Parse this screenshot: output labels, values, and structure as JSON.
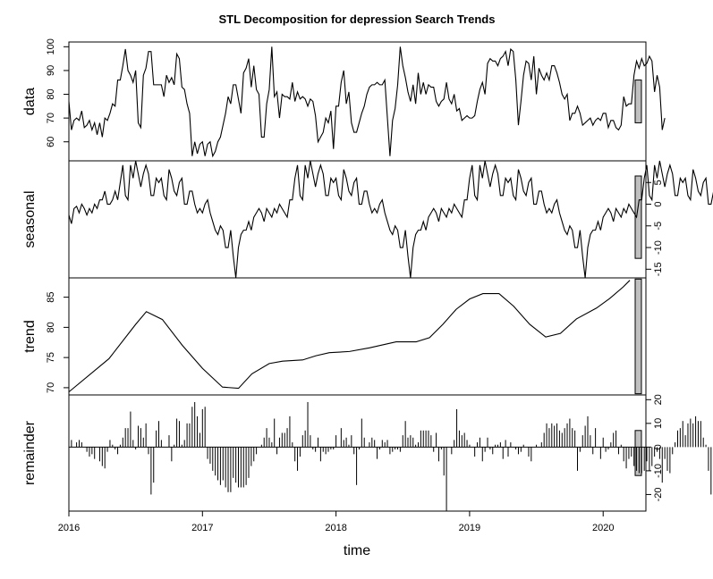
{
  "chart_data": {
    "type": "line",
    "title": "STL Decomposition for depression Search Trends",
    "xlabel": "time",
    "xlim": [
      2016,
      2020.32
    ],
    "x_ticks": [
      "2016",
      "2017",
      "2018",
      "2019",
      "2020"
    ],
    "x_start": 2016,
    "x_step": 0.0192308,
    "panels": [
      {
        "name": "data",
        "type": "line",
        "ylabel": "data",
        "ylim": [
          52,
          102
        ],
        "y_ticks": [
          "60",
          "70",
          "80",
          "90",
          "100"
        ],
        "y_axis_side": "left",
        "range_bar": [
          68,
          86
        ],
        "values": [
          77,
          65,
          69,
          70,
          69,
          73,
          66,
          67,
          69,
          65,
          68,
          63,
          68,
          62,
          70,
          69,
          72,
          76,
          75,
          86,
          86,
          92,
          99,
          90,
          88,
          85,
          90,
          68,
          66,
          88,
          91,
          98,
          98,
          84,
          84,
          84,
          84,
          79,
          88,
          85,
          87,
          84,
          97,
          95,
          83,
          82,
          76,
          72,
          54,
          60,
          55,
          59,
          60,
          54,
          59,
          60,
          54,
          56,
          60,
          62,
          67,
          72,
          79,
          76,
          84,
          84,
          78,
          72,
          89,
          91,
          95,
          83,
          92,
          82,
          80,
          62,
          62,
          76,
          82,
          100,
          79,
          81,
          70,
          80,
          79,
          79,
          78,
          85,
          77,
          81,
          78,
          79,
          78,
          75,
          78,
          77,
          71,
          60,
          62,
          64,
          70,
          68,
          73,
          57,
          75,
          75,
          85,
          90,
          76,
          81,
          68,
          64,
          64,
          68,
          72,
          75,
          80,
          83,
          84,
          84,
          85,
          84,
          84,
          86,
          70,
          54,
          69,
          74,
          84,
          100,
          92,
          87,
          81,
          77,
          84,
          76,
          89,
          80,
          85,
          80,
          84,
          83,
          83,
          77,
          75,
          77,
          78,
          85,
          78,
          76,
          80,
          73,
          74,
          69,
          70,
          71,
          70,
          70,
          71,
          77,
          82,
          85,
          80,
          93,
          95,
          94,
          94,
          92,
          95,
          96,
          98,
          92,
          99,
          98,
          86,
          67,
          77,
          88,
          94,
          93,
          86,
          96,
          80,
          91,
          88,
          86,
          89,
          86,
          92,
          92,
          89,
          85,
          80,
          78,
          80,
          69,
          72,
          72,
          75,
          72,
          67,
          68,
          69,
          70,
          67,
          69,
          70,
          69,
          72,
          72,
          66,
          69,
          69,
          66,
          65,
          67,
          79,
          75,
          76,
          76,
          88,
          94,
          91,
          95,
          92,
          93,
          96,
          94,
          81,
          88,
          83,
          65,
          70
        ]
      },
      {
        "name": "seasonal",
        "type": "line",
        "ylabel": "seasonal",
        "ylim": [
          -17,
          10
        ],
        "y_ticks": [
          "5",
          "0",
          "-5",
          "-10",
          "-15"
        ],
        "y_axis_side": "right",
        "range_bar": [
          -12.5,
          6.5
        ],
        "values": [
          -2.5,
          -4.5,
          -1,
          -0.5,
          -2,
          0,
          -1,
          -2.5,
          -1,
          -2,
          0,
          -1,
          1,
          1,
          3,
          0,
          0,
          1,
          3,
          1,
          5,
          9,
          2,
          1,
          9,
          6,
          10,
          7,
          4,
          7,
          9,
          7,
          2,
          2,
          6,
          5,
          6,
          2,
          1,
          8,
          6,
          3,
          2,
          5,
          6,
          0,
          0,
          3,
          3,
          0,
          -2,
          -1,
          -2,
          0,
          1,
          -2,
          -4,
          -6,
          -7,
          -5,
          -6,
          -10,
          -10,
          -6,
          -12,
          -17,
          -10,
          -7,
          -6,
          -6,
          -4,
          -6,
          -3,
          -2,
          -1,
          -2,
          -4,
          -1,
          -2,
          -3,
          -1,
          -2,
          0,
          -1,
          -2,
          -3,
          1,
          1,
          6,
          9,
          2,
          1,
          9,
          6,
          10,
          7,
          4,
          7,
          9,
          7,
          2,
          2,
          6,
          5,
          6,
          2,
          1,
          8,
          6,
          3,
          2,
          5,
          6,
          0,
          0,
          3,
          3,
          0,
          -2,
          -1,
          -2,
          0,
          1,
          -2,
          -4,
          -6,
          -7,
          -5,
          -6,
          -10,
          -10,
          -6,
          -12,
          -17,
          -10,
          -7,
          -6,
          -6,
          -4,
          -6,
          -3,
          -2,
          -1,
          -2,
          -4,
          -1,
          -2,
          -3,
          -1,
          -2,
          0,
          -1,
          -2,
          -3,
          1,
          1,
          6,
          9,
          2,
          1,
          9,
          6,
          10,
          7,
          4,
          7,
          9,
          7,
          2,
          2,
          6,
          5,
          6,
          2,
          1,
          8,
          6,
          3,
          2,
          5,
          6,
          0,
          0,
          3,
          3,
          0,
          -2,
          -1,
          -2,
          0,
          1,
          -2,
          -4,
          -6,
          -7,
          -5,
          -6,
          -10,
          -10,
          -6,
          -12,
          -17,
          -10,
          -7,
          -6,
          -6,
          -4,
          -6,
          -3,
          -2,
          -1,
          -2,
          -4,
          -1,
          -2,
          -3,
          -1,
          -2,
          0,
          -1,
          -2,
          -3,
          1,
          1,
          6,
          9,
          2,
          1,
          9,
          6,
          10,
          7,
          4,
          7,
          9,
          7,
          2,
          2,
          6,
          5,
          6,
          2,
          1,
          8,
          6,
          3,
          2,
          5,
          6,
          0,
          0,
          3,
          3,
          0
        ]
      },
      {
        "name": "trend",
        "type": "line",
        "ylabel": "trend",
        "ylim": [
          68.8,
          88.2
        ],
        "y_ticks": [
          "70",
          "75",
          "80",
          "85"
        ],
        "y_axis_side": "left",
        "range_bar": [
          69,
          88
        ],
        "knots": [
          [
            2016.0,
            69.3
          ],
          [
            2016.3,
            74.8
          ],
          [
            2016.5,
            80.5
          ],
          [
            2016.58,
            82.6
          ],
          [
            2016.7,
            81.3
          ],
          [
            2016.85,
            77.0
          ],
          [
            2017.0,
            73.2
          ],
          [
            2017.15,
            70.1
          ],
          [
            2017.27,
            69.9
          ],
          [
            2017.37,
            72.3
          ],
          [
            2017.5,
            74.0
          ],
          [
            2017.6,
            74.4
          ],
          [
            2017.75,
            74.6
          ],
          [
            2017.85,
            75.3
          ],
          [
            2017.95,
            75.8
          ],
          [
            2018.1,
            76.0
          ],
          [
            2018.25,
            76.6
          ],
          [
            2018.35,
            77.1
          ],
          [
            2018.45,
            77.6
          ],
          [
            2018.6,
            77.6
          ],
          [
            2018.7,
            78.3
          ],
          [
            2018.8,
            80.5
          ],
          [
            2018.9,
            83.0
          ],
          [
            2019.0,
            84.7
          ],
          [
            2019.1,
            85.6
          ],
          [
            2019.22,
            85.6
          ],
          [
            2019.33,
            83.5
          ],
          [
            2019.45,
            80.5
          ],
          [
            2019.57,
            78.4
          ],
          [
            2019.68,
            79.0
          ],
          [
            2019.8,
            81.4
          ],
          [
            2019.95,
            83.2
          ],
          [
            2020.05,
            84.8
          ],
          [
            2020.15,
            86.7
          ],
          [
            2020.2,
            87.8
          ]
        ]
      },
      {
        "name": "remainder",
        "type": "bar",
        "ylabel": "remainder",
        "ylim": [
          -27,
          22
        ],
        "y_ticks": [
          "20",
          "10",
          "0",
          "-10",
          "-20"
        ],
        "y_axis_side": "right",
        "range_bar": [
          -12,
          7
        ],
        "values": [
          11,
          3,
          0,
          2,
          3,
          2,
          0,
          -2,
          -4,
          -3,
          -5,
          0,
          -6,
          -8,
          -9,
          -2,
          3,
          1,
          -1,
          -3,
          1,
          4,
          8,
          8,
          15,
          3,
          -1,
          9,
          8,
          4,
          10,
          -3,
          -20,
          -15,
          7,
          11,
          3,
          0,
          0,
          5,
          -6,
          1,
          12,
          11,
          1,
          3,
          10,
          10,
          17,
          19,
          13,
          6,
          16,
          17,
          -5,
          -7,
          -10,
          -12,
          -14,
          -16,
          -14,
          -17,
          -19,
          -19,
          -13,
          -15,
          -17,
          -17,
          -17,
          -16,
          -13,
          -8,
          -6,
          -3,
          0,
          1,
          4,
          8,
          4,
          2,
          12,
          -3,
          4,
          6,
          6,
          8,
          13,
          2,
          -6,
          -10,
          -4,
          5,
          7,
          19,
          5,
          -1,
          -2,
          4,
          -6,
          -2,
          -3,
          -2,
          -1,
          -1,
          5,
          0,
          8,
          3,
          4,
          1,
          5,
          -3,
          -16,
          -1,
          12,
          4,
          0,
          2,
          4,
          3,
          -5,
          -1,
          3,
          2,
          3,
          -3,
          -2,
          -1,
          -1,
          -2,
          5,
          11,
          4,
          5,
          4,
          1,
          2,
          7,
          7,
          7,
          7,
          5,
          -2,
          6,
          -6,
          -1,
          -12,
          -27,
          0,
          -3,
          3,
          16,
          7,
          5,
          6,
          3,
          1,
          0,
          -4,
          2,
          4,
          -6,
          -2,
          4,
          -1,
          -3,
          1,
          1,
          2,
          -5,
          3,
          -4,
          2,
          0,
          -1,
          -3,
          -2,
          1,
          0,
          -4,
          -6,
          0,
          1,
          0,
          2,
          6,
          10,
          8,
          10,
          9,
          10,
          7,
          6,
          8,
          10,
          12,
          8,
          7,
          -10,
          -2,
          5,
          9,
          13,
          5,
          -3,
          8,
          0,
          -5,
          4,
          -2,
          -1,
          2,
          6,
          7,
          -3,
          1,
          -6,
          -9,
          -5,
          -4,
          -8,
          -10,
          -11,
          -11,
          -10,
          -6,
          -10,
          -8,
          -4,
          -2,
          -5,
          -15,
          -5,
          -10,
          -11,
          -3,
          2,
          7,
          8,
          11,
          5,
          10,
          12,
          10,
          13,
          11,
          11,
          4,
          1,
          -10,
          -20,
          -19
        ]
      }
    ]
  }
}
